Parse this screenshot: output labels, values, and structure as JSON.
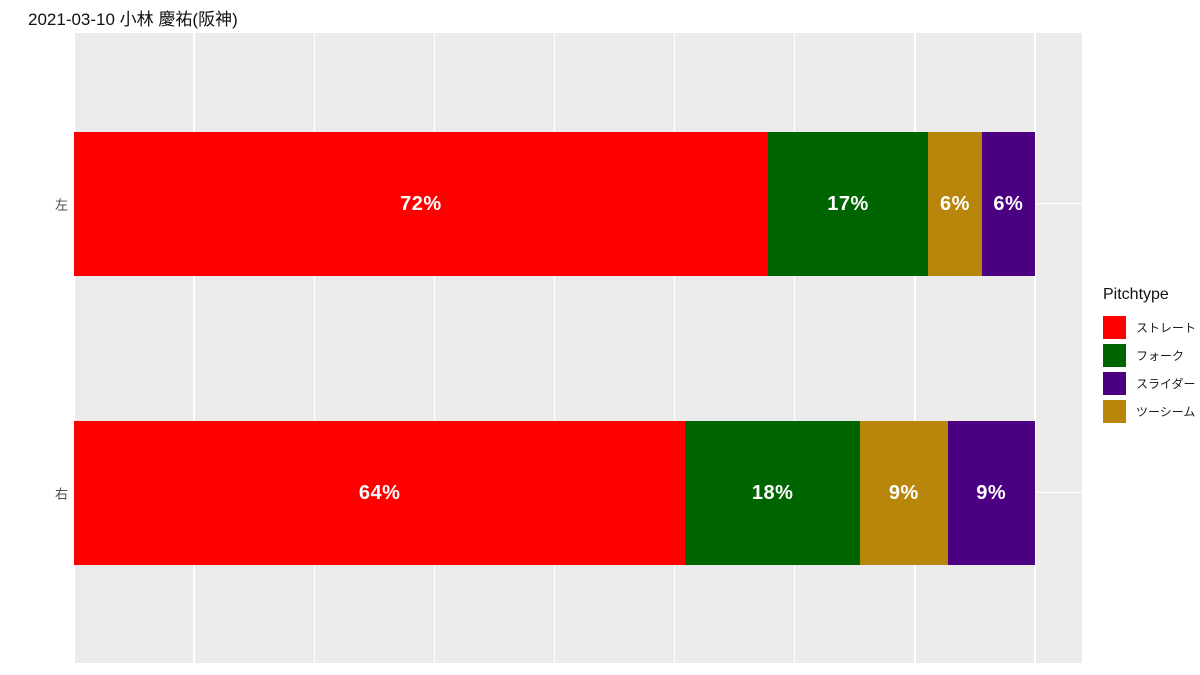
{
  "title": "2021-03-10 小林 慶祐(阪神)",
  "legend": {
    "title": "Pitchtype",
    "items": [
      {
        "label": "ストレート",
        "color": "#FF0000"
      },
      {
        "label": "フォーク",
        "color": "#006400"
      },
      {
        "label": "スライダー",
        "color": "#4B0082"
      },
      {
        "label": "ツーシーム",
        "color": "#B8860B"
      }
    ]
  },
  "chart_data": {
    "type": "bar",
    "orientation": "horizontal",
    "stacked": true,
    "title": "2021-03-10 小林 慶祐(阪神)",
    "categories": [
      "左",
      "右"
    ],
    "series": [
      {
        "name": "ストレート",
        "color": "#FF0000",
        "values": [
          72,
          64
        ]
      },
      {
        "name": "フォーク",
        "color": "#006400",
        "values": [
          17,
          18
        ]
      },
      {
        "name": "ツーシーム",
        "color": "#B8860B",
        "values": [
          6,
          9
        ]
      },
      {
        "name": "スライダー",
        "color": "#4B0082",
        "values": [
          6,
          9
        ]
      }
    ],
    "bar_labels": [
      [
        "72%",
        "17%",
        "6%",
        "6%"
      ],
      [
        "64%",
        "18%",
        "9%",
        "9%"
      ]
    ],
    "segment_widths_pct": [
      [
        72.2,
        16.7,
        5.55,
        5.55
      ],
      [
        63.6,
        18.2,
        9.1,
        9.1
      ]
    ],
    "xlim": [
      0,
      100
    ],
    "grid": {
      "vertical_breaks_pct": [
        0,
        12.5,
        25,
        37.5,
        50,
        62.5,
        75,
        87.5,
        100
      ],
      "horizontal_at_category_centers": true
    },
    "legend_title": "Pitchtype",
    "legend_position": "right",
    "panel_bg": "#EBEBEB",
    "grid_color": "#FFFFFF",
    "label_text_color": "#FFFFFF",
    "axis_text_color": "#4d4d4d"
  }
}
